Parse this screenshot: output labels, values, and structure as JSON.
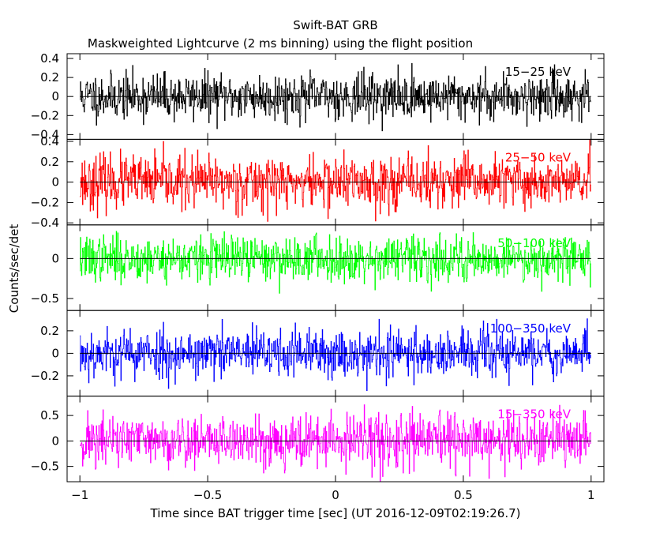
{
  "chart_data": {
    "type": "line",
    "title": "Swift-BAT GRB",
    "subtitle": "Maskweighted Lightcurve (2 ms binning) using the flight position",
    "xlabel": "Time since BAT trigger time [sec] (UT 2016-12-09T02:19:26.7)",
    "ylabel": "Counts/sec/det",
    "xlim": [
      -1.05,
      1.05
    ],
    "x_range_data": [
      -1,
      1
    ],
    "bin_width_sec": 0.002,
    "x_ticks": [
      -1,
      -0.5,
      0,
      0.5,
      1
    ],
    "x_tick_labels": [
      "−1",
      "−0.5",
      "0",
      "0.5",
      "1"
    ],
    "panels": [
      {
        "band": "15−25 keV",
        "color": "#000000",
        "ylim": [
          -0.45,
          0.45
        ],
        "y_ticks": [
          -0.4,
          -0.2,
          0,
          0.2,
          0.4
        ],
        "y_tick_labels": [
          "−0.4",
          "−0.2",
          "0",
          "0.2",
          "0.4"
        ],
        "noise_sigma": 0.12,
        "seed": 11
      },
      {
        "band": "25−50 keV",
        "color": "#ff0000",
        "ylim": [
          -0.42,
          0.42
        ],
        "y_ticks": [
          -0.4,
          -0.2,
          0,
          0.2,
          0.4
        ],
        "y_tick_labels": [
          "−0.4",
          "−0.2",
          "0",
          "0.2",
          "0.4"
        ],
        "noise_sigma": 0.13,
        "seed": 23
      },
      {
        "band": "50−100 keV",
        "color": "#00ff00",
        "ylim": [
          -0.65,
          0.42
        ],
        "y_ticks": [
          -0.5,
          0
        ],
        "y_tick_labels": [
          "−0.5",
          "0"
        ],
        "noise_sigma": 0.14,
        "seed": 37
      },
      {
        "band": "100−350 keV",
        "color": "#0000ff",
        "ylim": [
          -0.38,
          0.38
        ],
        "y_ticks": [
          -0.2,
          0,
          0.2
        ],
        "y_tick_labels": [
          "−0.2",
          "0",
          "0.2"
        ],
        "noise_sigma": 0.11,
        "seed": 53
      },
      {
        "band": "15−350 keV",
        "color": "#ff00ff",
        "ylim": [
          -0.8,
          0.88
        ],
        "y_ticks": [
          -0.5,
          0,
          0.5
        ],
        "y_tick_labels": [
          "−0.5",
          "0",
          "0.5"
        ],
        "noise_sigma": 0.26,
        "seed": 71
      }
    ]
  }
}
